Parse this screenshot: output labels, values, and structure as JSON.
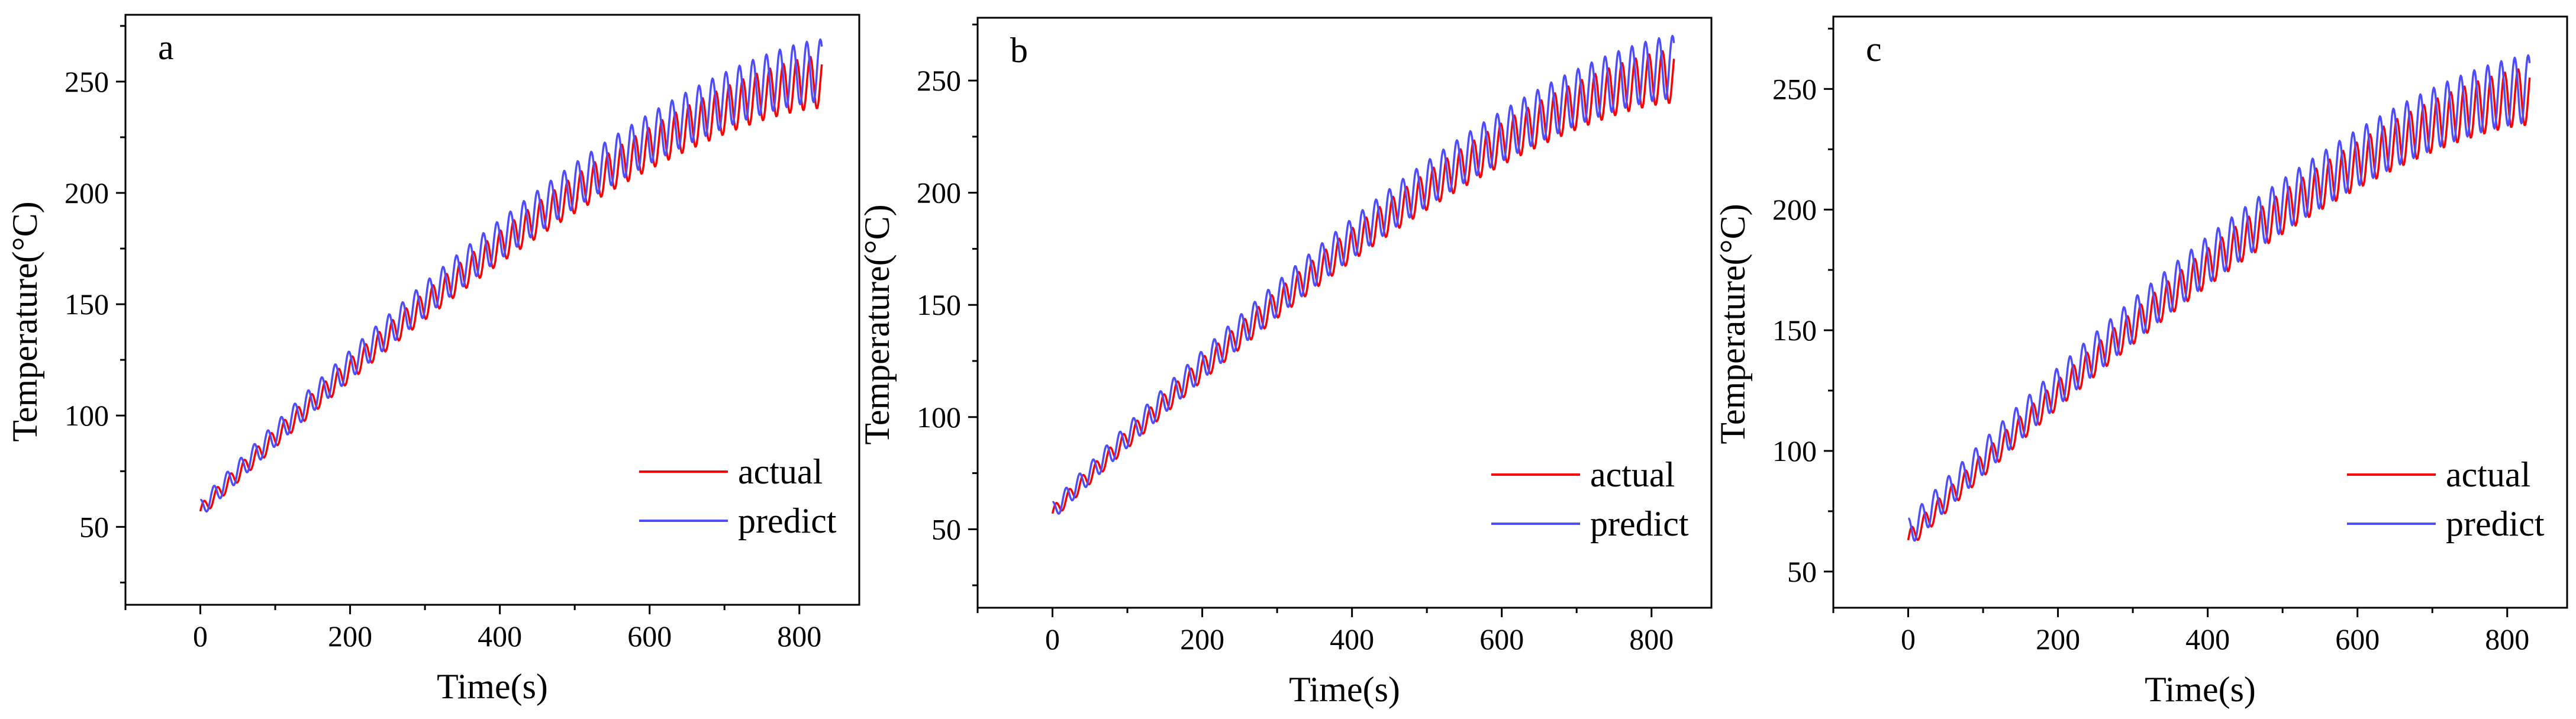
{
  "colors": {
    "actual": "#ff0000",
    "predict": "#4d4dff",
    "axis": "#000000",
    "background": "#ffffff"
  },
  "chart_data": [
    {
      "type": "line",
      "panel_label": "a",
      "xlabel": "Time(s)",
      "ylabel": "Temperature(°C)",
      "xlim": [
        -100,
        880
      ],
      "ylim": [
        15,
        280
      ],
      "xticks": [
        0,
        200,
        400,
        600,
        800
      ],
      "yticks": [
        50,
        100,
        150,
        200,
        250
      ],
      "legend_position": "bottom-right",
      "series": [
        {
          "name": "actual",
          "t_start": 0,
          "t_end": 830,
          "start_value": 57,
          "end_value": 250,
          "oscillation_period": 18,
          "amplitude_start": 3,
          "amplitude_end": 12,
          "phase": 0
        },
        {
          "name": "predict",
          "t_start": 0,
          "t_end": 830,
          "start_value": 58,
          "end_value": 255,
          "oscillation_period": 18,
          "amplitude_start": 4,
          "amplitude_end": 14,
          "phase": 0.25
        }
      ]
    },
    {
      "type": "line",
      "panel_label": "b",
      "xlabel": "Time(s)",
      "ylabel": "Temperature(°C)",
      "xlim": [
        -100,
        880
      ],
      "ylim": [
        15,
        278
      ],
      "xticks": [
        0,
        200,
        400,
        600,
        800
      ],
      "yticks": [
        50,
        100,
        150,
        200,
        250
      ],
      "legend_position": "bottom-right",
      "series": [
        {
          "name": "actual",
          "t_start": 0,
          "t_end": 830,
          "start_value": 57,
          "end_value": 252,
          "oscillation_period": 18,
          "amplitude_start": 3,
          "amplitude_end": 12,
          "phase": 0
        },
        {
          "name": "predict",
          "t_start": 0,
          "t_end": 830,
          "start_value": 58,
          "end_value": 256,
          "oscillation_period": 18,
          "amplitude_start": 4,
          "amplitude_end": 14,
          "phase": 0.25
        }
      ]
    },
    {
      "type": "line",
      "panel_label": "c",
      "xlabel": "Time(s)",
      "ylabel": "Temperature(°C)",
      "xlim": [
        -100,
        880
      ],
      "ylim": [
        35,
        280
      ],
      "xticks": [
        0,
        200,
        400,
        600,
        800
      ],
      "yticks": [
        50,
        100,
        150,
        200,
        250
      ],
      "legend_position": "bottom-right",
      "series": [
        {
          "name": "actual",
          "t_start": 0,
          "t_end": 830,
          "start_value": 63,
          "end_value": 247,
          "oscillation_period": 18,
          "amplitude_start": 4,
          "amplitude_end": 12,
          "phase": 0
        },
        {
          "name": "predict",
          "t_start": 0,
          "t_end": 830,
          "start_value": 66,
          "end_value": 250,
          "oscillation_period": 18,
          "amplitude_start": 6,
          "amplitude_end": 14,
          "phase": 0.25
        }
      ]
    }
  ]
}
